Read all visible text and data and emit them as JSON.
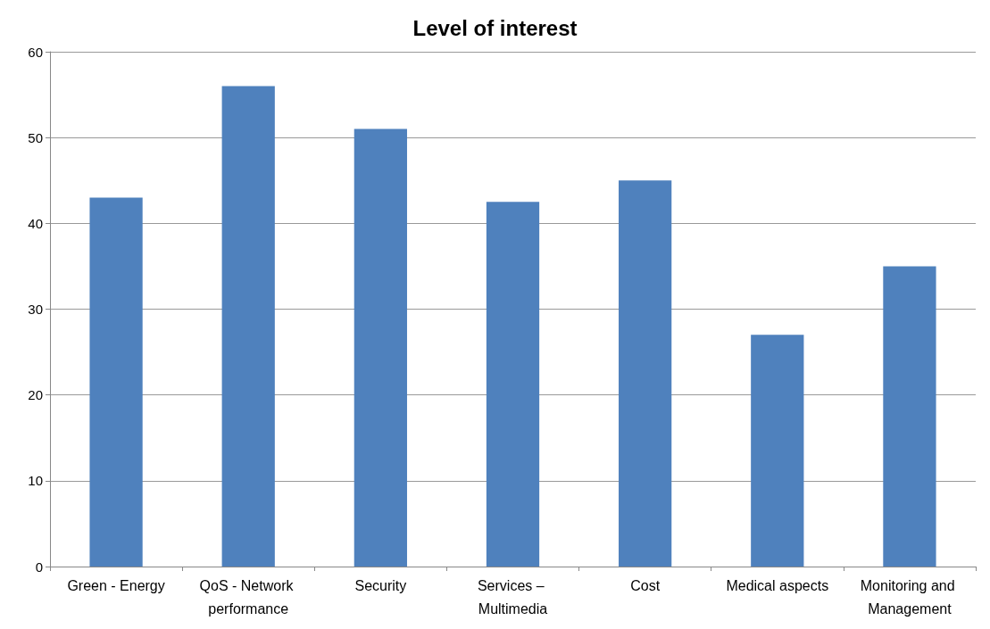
{
  "chart_data": {
    "type": "bar",
    "title": "Level of interest",
    "categories": [
      "Green - Energy",
      "QoS - Network performance",
      "Security",
      "Services – Multimedia",
      "Cost",
      "Medical aspects",
      "Monitoring and Management"
    ],
    "values": [
      43,
      56,
      51,
      42.5,
      45,
      27,
      35
    ],
    "color": "#4f81bd",
    "ylim": [
      0,
      60
    ],
    "yticks": [
      0,
      10,
      20,
      30,
      40,
      50,
      60
    ],
    "grid": "y"
  }
}
